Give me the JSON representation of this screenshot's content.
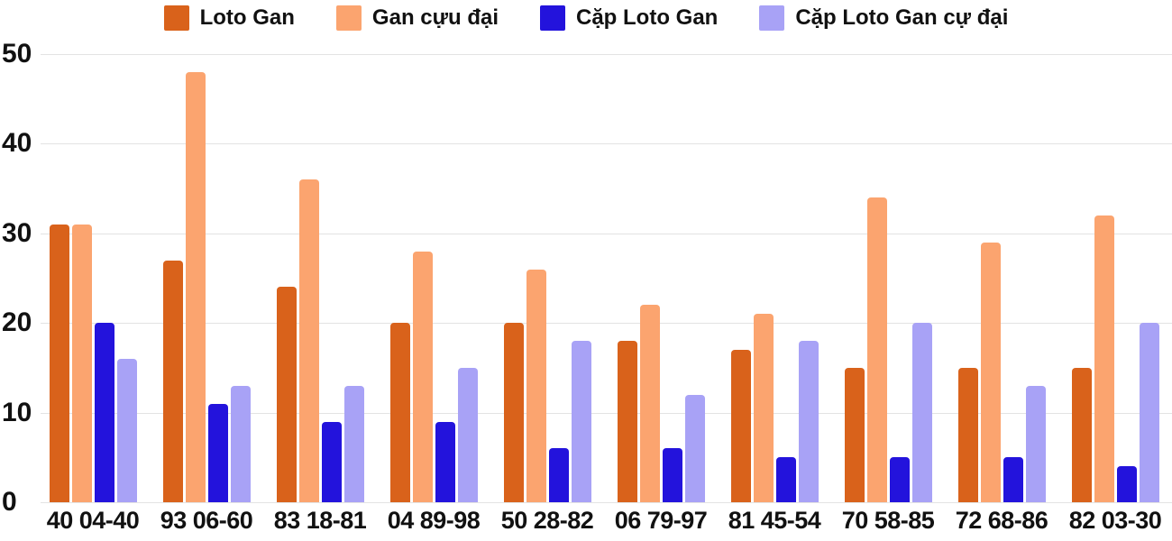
{
  "chart_data": {
    "type": "bar",
    "title": "",
    "xlabel": "",
    "ylabel": "",
    "categories": [
      "40 04-40",
      "93 06-60",
      "83 18-81",
      "04 89-98",
      "50 28-82",
      "06 79-97",
      "81 45-54",
      "70 58-85",
      "72 68-86",
      "82 03-30"
    ],
    "series": [
      {
        "name": "Loto Gan",
        "color": "#D9621B",
        "values": [
          31,
          27,
          24,
          20,
          20,
          18,
          17,
          15,
          15,
          15
        ]
      },
      {
        "name": "Gan cựu đại",
        "color": "#FBA46F",
        "values": [
          31,
          48,
          36,
          28,
          26,
          22,
          21,
          34,
          29,
          32
        ]
      },
      {
        "name": "Cặp Loto Gan",
        "color": "#2313DC",
        "values": [
          20,
          11,
          9,
          9,
          6,
          6,
          5,
          5,
          5,
          4
        ]
      },
      {
        "name": "Cặp Loto Gan cự đại",
        "color": "#A8A2F6",
        "values": [
          16,
          13,
          13,
          15,
          18,
          12,
          18,
          20,
          13,
          20
        ]
      }
    ],
    "ylim": [
      0,
      50
    ],
    "yticks": [
      0,
      10,
      20,
      30,
      40,
      50
    ],
    "grid": true,
    "legend_position": "top",
    "axis_text_color": "#111111",
    "gridline_color": "#e3e3e3"
  }
}
